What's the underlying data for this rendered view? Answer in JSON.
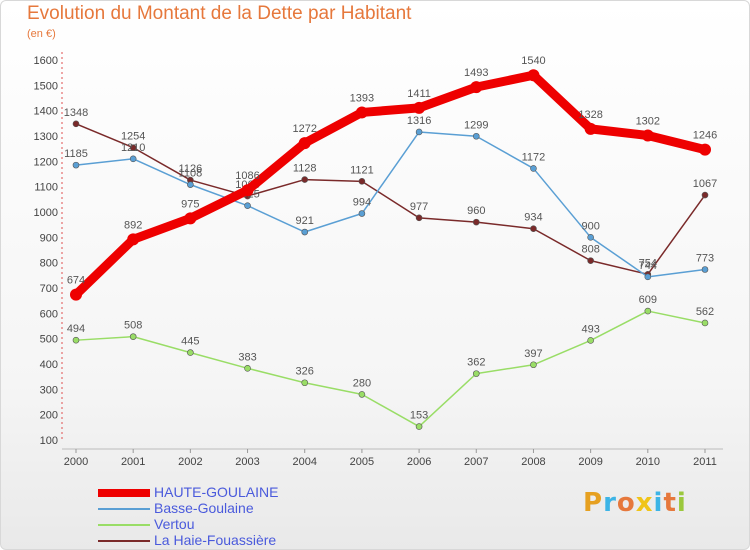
{
  "title": "Evolution du Montant de la Dette par Habitant",
  "subtitle": "(en €)",
  "logo": {
    "text": "Proxiti",
    "colors": [
      "#e6a020",
      "#3cb4e6",
      "#e6783c",
      "#f0c419",
      "#3cb4e6",
      "#e6783c",
      "#9bc83c"
    ]
  },
  "chart_data": {
    "type": "line",
    "x": [
      2000,
      2001,
      2002,
      2003,
      2004,
      2005,
      2006,
      2007,
      2008,
      2009,
      2010,
      2011
    ],
    "ylim": [
      100,
      1600
    ],
    "yticks": [
      100,
      200,
      300,
      400,
      500,
      600,
      700,
      800,
      900,
      1000,
      1100,
      1200,
      1300,
      1400,
      1500,
      1600
    ],
    "grid": false,
    "legend_position": "bottom-left",
    "series": [
      {
        "name": "La Haie-Fouassière",
        "color": "#7a2a2a",
        "values": [
          1348,
          1254,
          1126,
          1063,
          1128,
          1121,
          977,
          960,
          934,
          808,
          754,
          1067
        ],
        "labels": [
          "1348",
          "1254",
          "1126",
          "1063",
          "1128",
          "1121",
          "977",
          "960",
          "934",
          "808",
          "754",
          "1067"
        ]
      },
      {
        "name": "Basse-Goulaine",
        "color": "#5a9fd4",
        "values": [
          1185,
          1210,
          1108,
          1025,
          921,
          994,
          1316,
          1299,
          1172,
          900,
          744,
          773
        ],
        "labels": [
          "1185",
          "1210",
          "1108",
          "1025",
          "921",
          "994",
          "1316",
          "1299",
          "1172",
          "900",
          "744",
          "773"
        ]
      },
      {
        "name": "Vertou",
        "color": "#99dd66",
        "values": [
          494,
          508,
          445,
          383,
          326,
          280,
          153,
          362,
          397,
          493,
          609,
          562
        ],
        "labels": [
          "494",
          "508",
          "445",
          "383",
          "326",
          "280",
          "153",
          "362",
          "397",
          "493",
          "609",
          "562"
        ]
      },
      {
        "name": "HAUTE-GOULAINE",
        "color": "#ee0000",
        "values": [
          674,
          892,
          975,
          1086,
          1272,
          1393,
          1411,
          1493,
          1540,
          1328,
          1302,
          1246
        ],
        "labels": [
          "674",
          "892",
          "975",
          "1086",
          "1272",
          "1393",
          "1411",
          "1493",
          "1540",
          "1328",
          "1302",
          "1246"
        ]
      }
    ]
  },
  "legend": [
    {
      "label": "HAUTE-GOULAINE",
      "color": "#ee0000"
    },
    {
      "label": "Basse-Goulaine",
      "color": "#5a9fd4"
    },
    {
      "label": "Vertou",
      "color": "#99dd66"
    },
    {
      "label": "La Haie-Fouassière",
      "color": "#7a2a2a"
    }
  ]
}
